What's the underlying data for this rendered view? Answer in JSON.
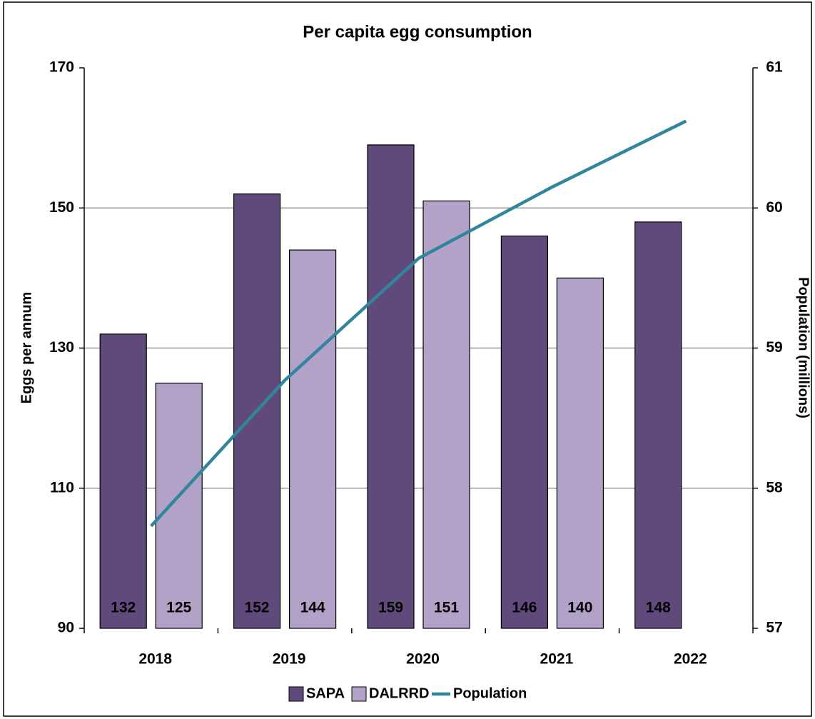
{
  "chart_data": {
    "type": "bar",
    "title": "Per capita egg consumption",
    "ylabel": "Eggs per annum",
    "y2label": "Population (millions)",
    "categories": [
      "2018",
      "2019",
      "2020",
      "2021",
      "2022"
    ],
    "series": [
      {
        "name": "SAPA",
        "color": "#604a7b",
        "type": "bar",
        "values": [
          132,
          152,
          159,
          146,
          148
        ]
      },
      {
        "name": "DALRRD",
        "color": "#b3a2c7",
        "type": "bar",
        "values": [
          125,
          144,
          151,
          140,
          null
        ]
      },
      {
        "name": "Population",
        "color": "#31859c",
        "type": "line",
        "axis": "y2",
        "values": [
          57.73,
          58.77,
          59.64,
          60.15,
          60.62
        ]
      }
    ],
    "ylim": [
      90,
      170
    ],
    "yticks": [
      90,
      110,
      130,
      150,
      170
    ],
    "y2lim": [
      57,
      61
    ],
    "y2ticks": [
      57,
      58,
      59,
      60,
      61
    ],
    "grid": true,
    "legend": "bottom"
  }
}
